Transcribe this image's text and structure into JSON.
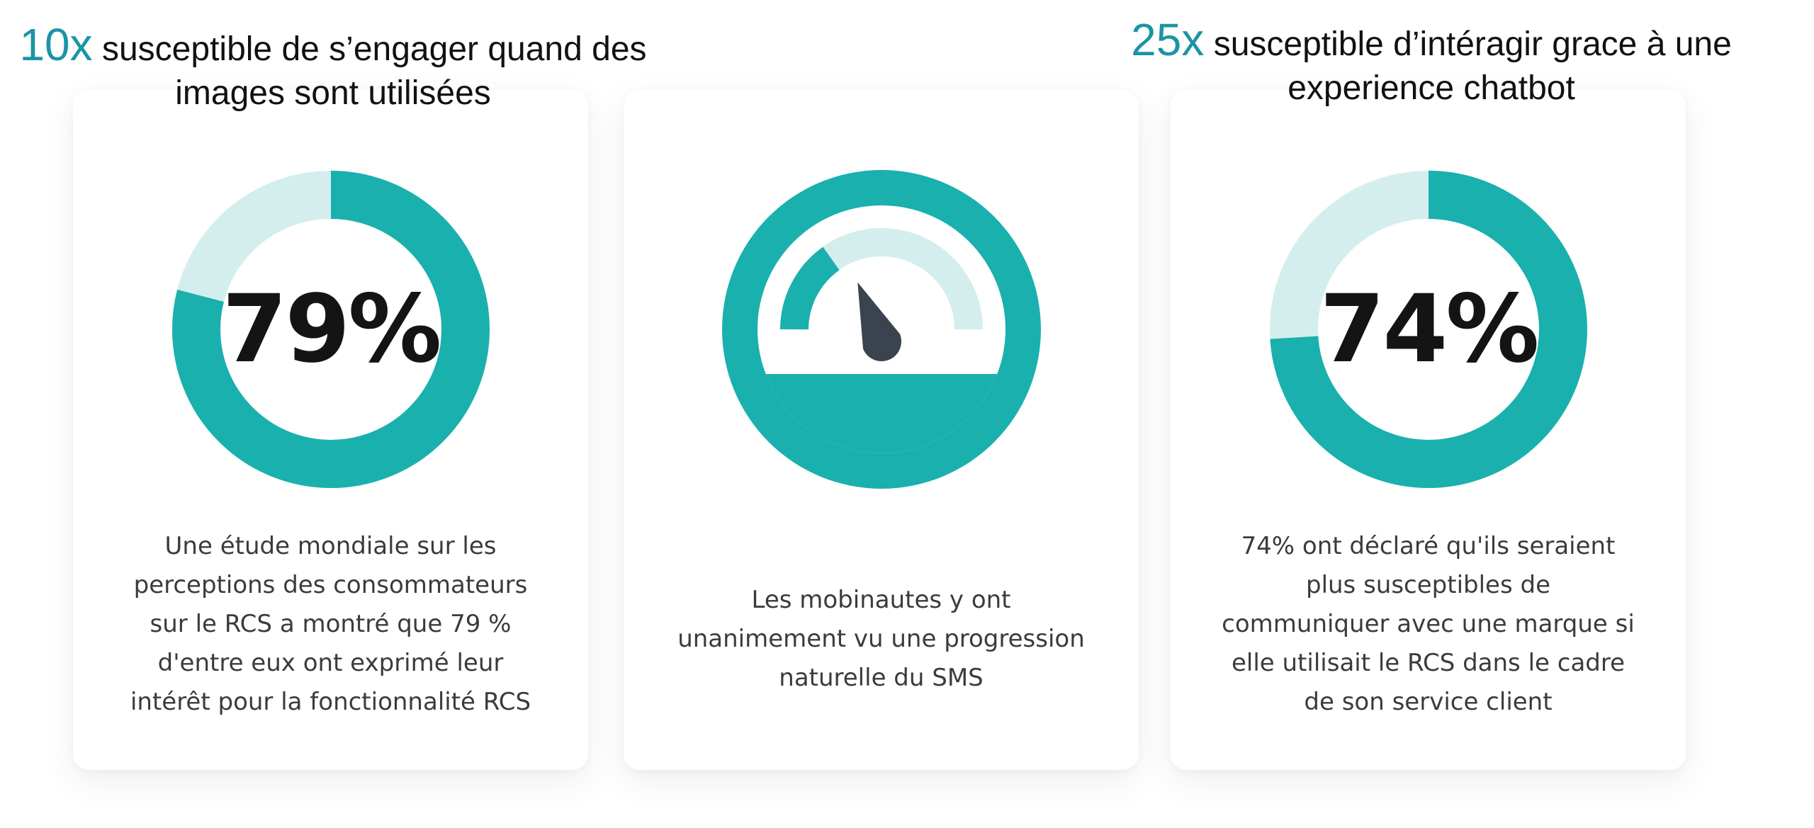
{
  "headings": [
    {
      "multiplier": "10x",
      "text": " susceptible de s’engager quand des images sont utilisées"
    },
    {
      "multiplier": "25x",
      "text": " susceptible d’intéragir grace à une experience chatbot"
    }
  ],
  "cards": [
    {
      "visual": "donut-chart",
      "value_label": "79%",
      "value_percent": 79,
      "description": "Une étude mondiale sur les perceptions des consommateurs sur le RCS a montré que 79 % d'entre eux ont exprimé leur intérêt pour la fonctionnalité RCS"
    },
    {
      "visual": "speedometer-icon",
      "description": "Les mobinautes y ont unanimement vu une progression naturelle du SMS"
    },
    {
      "visual": "donut-chart",
      "value_label": "74%",
      "value_percent": 74,
      "description": "74% ont déclaré qu'ils seraient plus susceptibles de communiquer avec une marque si elle utilisait le RCS dans le cadre de son service client"
    }
  ],
  "colors": {
    "teal": "#1ab0ae",
    "teal_light": "#d4eeee",
    "accent_blue": "#1a95a5",
    "needle": "#3a434e",
    "text_dark": "#111111",
    "text_body": "#3b3b3b"
  }
}
